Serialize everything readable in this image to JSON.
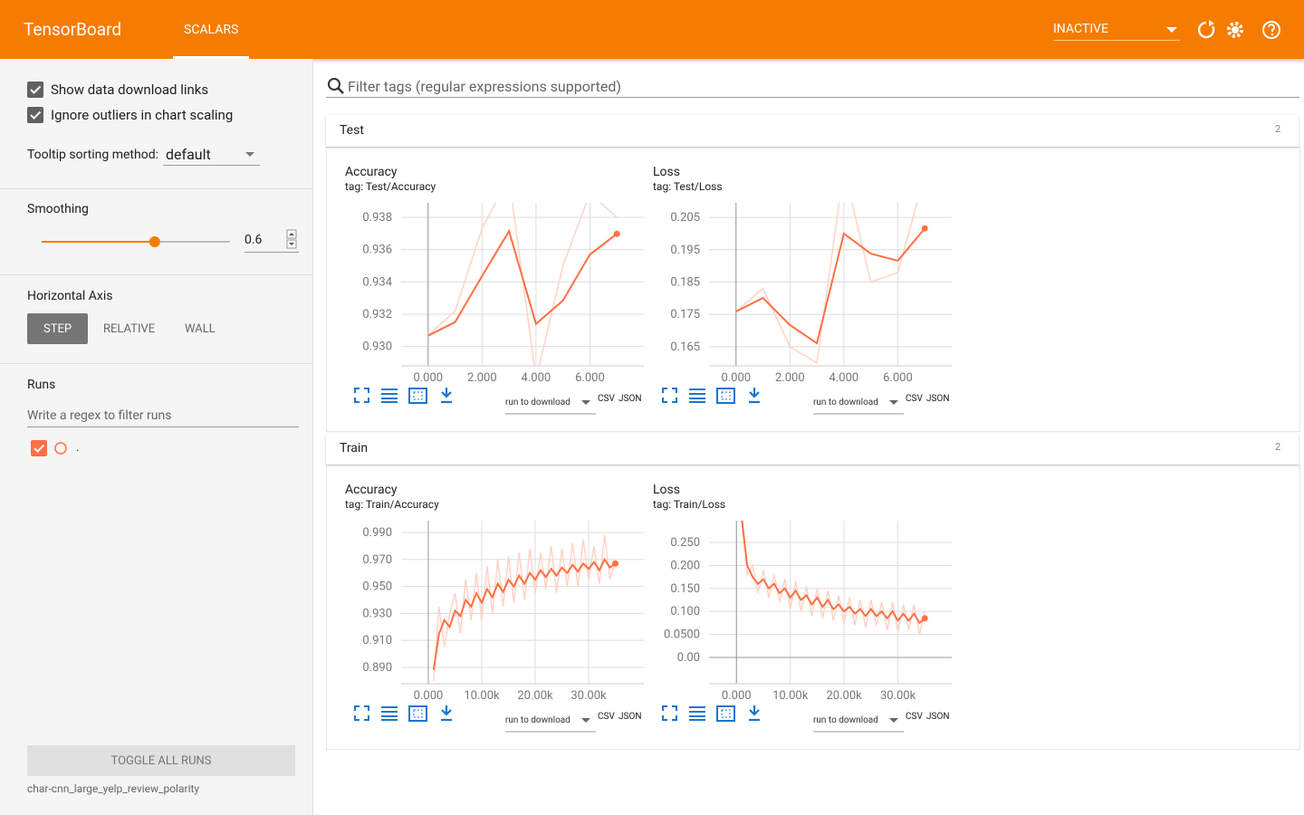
{
  "header": {
    "title": "TensorBoard",
    "tab": "SCALARS",
    "status": "INACTIVE"
  },
  "sidebar": {
    "checkboxes": [
      "Show data download links",
      "Ignore outliers in chart scaling"
    ],
    "tooltip_label": "Tooltip sorting method:",
    "tooltip_value": "default",
    "smoothing_title": "Smoothing",
    "smoothing": 0.6,
    "axis_title": "Horizontal Axis",
    "axis_options": [
      "STEP",
      "RELATIVE",
      "WALL"
    ],
    "runs_title": "Runs",
    "runs_filter": "Write a regex to filter runs",
    "runs": [
      "."
    ],
    "toggle": "TOGGLE ALL RUNS",
    "logdir": "char-cnn_large_yelp_review_polarity"
  },
  "filter": "Filter tags (regular expressions supported)",
  "sections": [
    {
      "name": "Test",
      "count": 2
    },
    {
      "name": "Train",
      "count": 2
    }
  ],
  "chart_data": [
    {
      "type": "line",
      "title": "Accuracy",
      "tag": "tag: Test/Accuracy",
      "x": [
        0,
        1,
        2,
        3,
        4,
        5,
        6,
        7
      ],
      "series": [
        {
          "color": "#ffd3c6",
          "values": [
            0.9307,
            0.9322,
            0.9373,
            0.9405,
            0.928,
            0.935,
            0.9395,
            0.938
          ]
        },
        {
          "color": "#ff7043",
          "values": [
            0.93067,
            0.93151,
            0.93436,
            0.93715,
            0.9314,
            0.93285,
            0.9357,
            0.93698
          ]
        }
      ],
      "xlim": [
        -1,
        8
      ],
      "ylim": [
        0.9288,
        0.9389
      ],
      "xticks": [
        {
          "value": 0,
          "label": "0.000"
        },
        {
          "value": 2,
          "label": "2.000"
        },
        {
          "value": 4,
          "label": "4.000"
        },
        {
          "value": 6,
          "label": "6.000"
        }
      ],
      "yticks": [
        0.938,
        0.936,
        0.934,
        0.932,
        {
          "value": 0.93,
          "label": "0.930"
        }
      ],
      "grid": true,
      "download": "run to download",
      "formats": [
        "CSV",
        "JSON"
      ]
    },
    {
      "type": "line",
      "title": "Loss",
      "tag": "tag: Test/Loss",
      "x": [
        0,
        1,
        2,
        3,
        4,
        5,
        6,
        7
      ],
      "series": [
        {
          "color": "#ffd3c6",
          "values": [
            0.1759,
            0.183,
            0.165,
            0.16,
            0.22,
            0.185,
            0.188,
            0.218
          ]
        },
        {
          "color": "#ff7043",
          "values": [
            0.1759,
            0.1801,
            0.1717,
            0.1661,
            0.2,
            0.1938,
            0.1916,
            0.2016
          ]
        }
      ],
      "xlim": [
        -1,
        8
      ],
      "ylim": [
        0.1591,
        0.2095
      ],
      "xticks": [
        {
          "value": 0,
          "label": "0.000"
        },
        {
          "value": 2,
          "label": "2.000"
        },
        {
          "value": 4,
          "label": "4.000"
        },
        {
          "value": 6,
          "label": "6.000"
        }
      ],
      "yticks": [
        0.205,
        0.195,
        0.185,
        0.175,
        0.165
      ],
      "grid": true,
      "download": "run to download",
      "formats": [
        "CSV",
        "JSON"
      ]
    },
    {
      "type": "line",
      "title": "Accuracy",
      "tag": "tag: Train/Accuracy",
      "x": [
        1000,
        2000,
        3000,
        4000,
        5000,
        6000,
        7000,
        8000,
        9000,
        10000,
        11000,
        12000,
        13000,
        14000,
        15000,
        16000,
        17000,
        18000,
        19000,
        20000,
        21000,
        22000,
        23000,
        24000,
        25000,
        26000,
        27000,
        28000,
        29000,
        30000,
        31000,
        32000,
        33000,
        34000,
        35000
      ],
      "series": [
        {
          "color": "#ffd3c6",
          "values": [
            0.88,
            0.935,
            0.905,
            0.93,
            0.945,
            0.915,
            0.955,
            0.925,
            0.96,
            0.925,
            0.965,
            0.93,
            0.97,
            0.935,
            0.972,
            0.938,
            0.975,
            0.94,
            0.978,
            0.945,
            0.975,
            0.948,
            0.98,
            0.945,
            0.978,
            0.95,
            0.982,
            0.95,
            0.985,
            0.955,
            0.98,
            0.952,
            0.988,
            0.955,
            0.97
          ]
        },
        {
          "color": "#ff7043",
          "values": [
            0.888,
            0.915,
            0.925,
            0.92,
            0.932,
            0.928,
            0.94,
            0.935,
            0.945,
            0.938,
            0.948,
            0.942,
            0.952,
            0.946,
            0.955,
            0.95,
            0.958,
            0.952,
            0.96,
            0.955,
            0.962,
            0.957,
            0.963,
            0.958,
            0.964,
            0.96,
            0.966,
            0.961,
            0.967,
            0.963,
            0.968,
            0.962,
            0.97,
            0.964,
            0.967
          ]
        }
      ],
      "xlim": [
        -5085,
        40340
      ],
      "ylim": [
        0.8779,
        0.9987
      ],
      "xticks": [
        {
          "value": 0,
          "label": "0.000"
        },
        {
          "value": 10000,
          "label": "10.00k"
        },
        {
          "value": 20000,
          "label": "20.00k"
        },
        {
          "value": 30000,
          "label": "30.00k"
        }
      ],
      "yticks": [
        {
          "value": 0.99,
          "label": "0.990"
        },
        {
          "value": 0.97,
          "label": "0.970"
        },
        {
          "value": 0.95,
          "label": "0.950"
        },
        {
          "value": 0.93,
          "label": "0.930"
        },
        {
          "value": 0.91,
          "label": "0.910"
        },
        {
          "value": 0.89,
          "label": "0.890"
        }
      ],
      "grid": true,
      "download": "run to download",
      "formats": [
        "CSV",
        "JSON"
      ]
    },
    {
      "type": "line",
      "title": "Loss",
      "tag": "tag: Train/Loss",
      "x": [
        1000,
        2000,
        3000,
        4000,
        5000,
        6000,
        7000,
        8000,
        9000,
        10000,
        11000,
        12000,
        13000,
        14000,
        15000,
        16000,
        17000,
        18000,
        19000,
        20000,
        21000,
        22000,
        23000,
        24000,
        25000,
        26000,
        27000,
        28000,
        29000,
        30000,
        31000,
        32000,
        33000,
        34000,
        35000
      ],
      "series": [
        {
          "color": "#ffd3c6",
          "values": [
            0.32,
            0.18,
            0.2,
            0.14,
            0.19,
            0.13,
            0.18,
            0.12,
            0.17,
            0.105,
            0.165,
            0.1,
            0.155,
            0.09,
            0.15,
            0.085,
            0.145,
            0.08,
            0.135,
            0.075,
            0.13,
            0.07,
            0.125,
            0.065,
            0.125,
            0.07,
            0.12,
            0.06,
            0.12,
            0.055,
            0.115,
            0.06,
            0.115,
            0.05,
            0.1
          ]
        },
        {
          "color": "#ff7043",
          "values": [
            0.3,
            0.2,
            0.175,
            0.16,
            0.17,
            0.15,
            0.16,
            0.14,
            0.15,
            0.13,
            0.145,
            0.125,
            0.135,
            0.115,
            0.13,
            0.11,
            0.125,
            0.105,
            0.115,
            0.1,
            0.11,
            0.095,
            0.105,
            0.09,
            0.105,
            0.09,
            0.1,
            0.085,
            0.1,
            0.08,
            0.095,
            0.08,
            0.095,
            0.075,
            0.085
          ]
        }
      ],
      "xlim": [
        -5091,
        40000
      ],
      "ylim": [
        -0.0571,
        0.2972
      ],
      "xticks": [
        {
          "value": 0,
          "label": "0.000"
        },
        {
          "value": 10000,
          "label": "10.00k"
        },
        {
          "value": 20000,
          "label": "20.00k"
        },
        {
          "value": 30000,
          "label": "30.00k"
        }
      ],
      "yticks": [
        {
          "value": 0.25,
          "label": "0.250"
        },
        {
          "value": 0.2,
          "label": "0.200"
        },
        {
          "value": 0.15,
          "label": "0.150"
        },
        {
          "value": 0.1,
          "label": "0.100"
        },
        {
          "value": 0.05,
          "label": "0.0500"
        },
        {
          "value": 0,
          "label": "0.00"
        }
      ],
      "grid": true,
      "download": "run to download",
      "formats": [
        "CSV",
        "JSON"
      ]
    }
  ]
}
